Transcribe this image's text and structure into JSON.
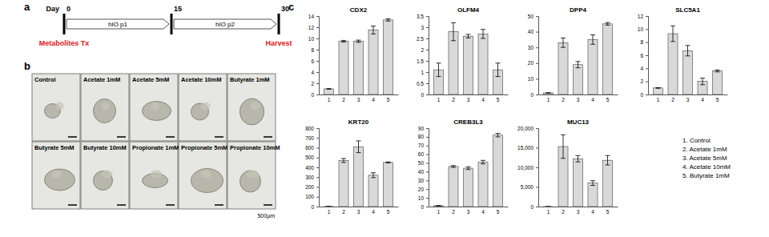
{
  "panel_labels": [
    "a",
    "b",
    "c"
  ],
  "timeline": {
    "day_label": "Day",
    "ticks": [
      0,
      15,
      30
    ],
    "segments": [
      {
        "label": "hIO p1",
        "start": 0,
        "end": 15
      },
      {
        "label": "hIO p2",
        "start": 15,
        "end": 30
      }
    ],
    "events": [
      {
        "label": "Metabolites Tx",
        "day": 0
      },
      {
        "label": "Harvest",
        "day": 30
      }
    ]
  },
  "images": {
    "labels": [
      "Control",
      "Acetate 1mM",
      "Acetate 5mM",
      "Acetate 10mM",
      "Butyrate 1mM",
      "Butyrate 5mM",
      "Butyrate 10mM",
      "Propionate 1mM",
      "Propionate 5mM",
      "Propionate 10mM"
    ],
    "scale_bar": "500µm"
  },
  "legend_key": [
    "1. Control",
    "2. Acetate 1mM",
    "3. Acetate 5mM",
    "4. Acetate 10mM",
    "5. Butyrate 1mM"
  ],
  "chart_data": [
    {
      "type": "bar",
      "title": "CDX2",
      "categories": [
        "1",
        "2",
        "3",
        "4",
        "5"
      ],
      "values": [
        1,
        9.5,
        9.5,
        11.5,
        13.3
      ],
      "errors": [
        0.05,
        0.15,
        0.2,
        0.7,
        0.2
      ],
      "color": "#d9d9d9",
      "ylim": [
        0,
        14
      ],
      "yticks": [
        0,
        2,
        4,
        6,
        8,
        10,
        12,
        14
      ],
      "grid": false
    },
    {
      "type": "bar",
      "title": "OLFM4",
      "categories": [
        "1",
        "2",
        "3",
        "4",
        "5"
      ],
      "values": [
        1.1,
        2.8,
        2.6,
        2.7,
        1.1
      ],
      "errors": [
        0.3,
        0.4,
        0.08,
        0.2,
        0.3
      ],
      "color": "#d9d9d9",
      "ylim": [
        0,
        3.5
      ],
      "yticks": [
        0,
        0.5,
        1,
        1.5,
        2,
        2.5,
        3,
        3.5
      ],
      "grid": false
    },
    {
      "type": "bar",
      "title": "DPP4",
      "categories": [
        "1",
        "2",
        "3",
        "4",
        "5"
      ],
      "values": [
        1,
        33,
        19,
        35,
        45
      ],
      "errors": [
        0.1,
        3,
        2,
        3,
        0.8
      ],
      "color": "#d9d9d9",
      "ylim": [
        0,
        50
      ],
      "yticks": [
        0,
        10,
        20,
        30,
        40,
        50
      ],
      "grid": false
    },
    {
      "type": "bar",
      "title": "SLC5A1",
      "categories": [
        "1",
        "2",
        "3",
        "4",
        "5"
      ],
      "values": [
        1,
        9.3,
        6.7,
        2,
        3.6
      ],
      "errors": [
        0.05,
        1.2,
        0.8,
        0.5,
        0.15
      ],
      "color": "#d9d9d9",
      "ylim": [
        0,
        12
      ],
      "yticks": [
        0,
        2,
        4,
        6,
        8,
        10,
        12
      ],
      "grid": false
    },
    {
      "type": "bar",
      "title": "KRT20",
      "categories": [
        "1",
        "2",
        "3",
        "4",
        "5"
      ],
      "values": [
        1,
        470,
        610,
        320,
        450
      ],
      "errors": [
        0.1,
        20,
        60,
        25,
        5
      ],
      "color": "#d9d9d9",
      "ylim": [
        0,
        800
      ],
      "yticks": [
        0,
        100,
        200,
        300,
        400,
        500,
        600,
        700,
        800
      ],
      "grid": false
    },
    {
      "type": "bar",
      "title": "CREB3L3",
      "categories": [
        "1",
        "2",
        "3",
        "4",
        "5"
      ],
      "values": [
        1,
        46,
        44,
        51,
        82
      ],
      "errors": [
        0.1,
        1,
        1.5,
        2,
        2
      ],
      "color": "#d9d9d9",
      "ylim": [
        0,
        90
      ],
      "yticks": [
        0,
        10,
        20,
        30,
        40,
        50,
        60,
        70,
        80,
        90
      ],
      "grid": false
    },
    {
      "type": "bar",
      "title": "MUC13",
      "categories": [
        "1",
        "2",
        "3",
        "4",
        "5"
      ],
      "values": [
        1,
        15300,
        12200,
        6000,
        11800
      ],
      "errors": [
        0.1,
        3000,
        800,
        600,
        1200
      ],
      "color": "#d9d9d9",
      "ylim": [
        0,
        20000
      ],
      "yticks": [
        0,
        {
          "value": 5000,
          "label": "5,000"
        },
        {
          "value": 10000,
          "label": "10,000"
        },
        {
          "value": 15000,
          "label": "15,000"
        },
        {
          "value": 20000,
          "label": "20,000"
        }
      ],
      "grid": false
    }
  ]
}
